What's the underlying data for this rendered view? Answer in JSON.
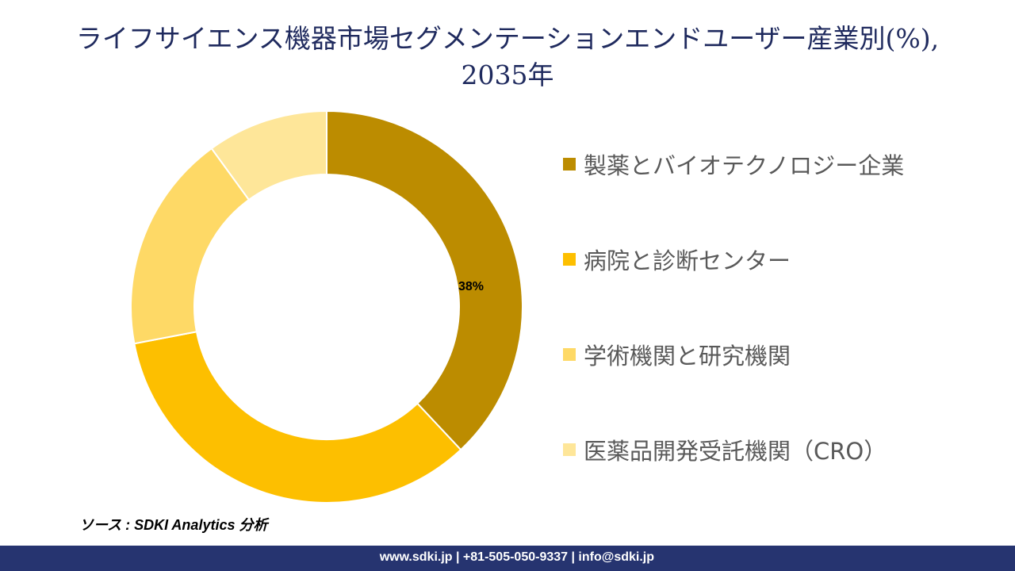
{
  "title_line1": "ライフサイエンス機器市場セグメンテーションエンドユーザー産業別(%),",
  "title_line2": "2035年",
  "chart_data": {
    "type": "pie",
    "variant": "donut",
    "title": "ライフサイエンス機器市場セグメンテーションエンドユーザー産業別(%), 2035年",
    "categories": [
      "製薬とバイオテクノロジー企業",
      "病院と診断センター",
      "学術機関と研究機関",
      "医薬品開発受託機関（CRO）"
    ],
    "values": [
      38,
      34,
      18,
      10
    ],
    "colors": [
      "#BC8C00",
      "#FDBF00",
      "#FED966",
      "#FEE699"
    ],
    "data_labels": [
      "38%",
      null,
      null,
      null
    ],
    "legend_position": "right"
  },
  "source": "ソース : SDKI Analytics 分析",
  "footer": "www.sdki.jp | +81-505-050-9337 | info@sdki.jp"
}
